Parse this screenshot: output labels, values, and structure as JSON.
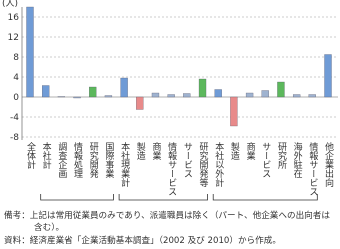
{
  "chart_data": {
    "type": "bar",
    "y_label": "(人)",
    "categories": [
      "全体計",
      "本社計",
      "調査企画",
      "情報処理",
      "研究開発",
      "国際事業",
      "本社現業計",
      "製造",
      "商業",
      "情報サービス",
      "サービス",
      "研究開発等",
      "本社以外計",
      "製造",
      "商業",
      "サービス",
      "研究所",
      "海外駐在",
      "情報サービス",
      "他企業出向"
    ],
    "values": [
      18,
      2.3,
      0.1,
      -0.2,
      2,
      0.3,
      3.8,
      -2.5,
      0.8,
      0.5,
      0.7,
      3.6,
      1.5,
      -5.8,
      0.8,
      1.3,
      3,
      0.5,
      0.5,
      8.5
    ],
    "colors": [
      "#6f9bd6",
      "#6f9bd6",
      "#9fb3d0",
      "#9fb3d0",
      "#5cb85c",
      "#9fb3d0",
      "#6f9bd6",
      "#e88a8a",
      "#9fb3d0",
      "#9fb3d0",
      "#9fb3d0",
      "#5cb85c",
      "#6f9bd6",
      "#e88a8a",
      "#9fb3d0",
      "#9fb3d0",
      "#5cb85c",
      "#9fb3d0",
      "#9fb3d0",
      "#6f9bd6"
    ],
    "ylim": [
      -8,
      18
    ],
    "yticks": [
      16,
      12,
      8,
      4,
      0,
      -4,
      -8
    ],
    "grid": true
  },
  "notes": [
    "備考：上記は常用従業員のみであり、派遣職員は除く（パート、他企業への出向者は含む）。",
    "資料：経済産業省「企業活動基本調査」（2002 及び 2010）から作成。"
  ]
}
